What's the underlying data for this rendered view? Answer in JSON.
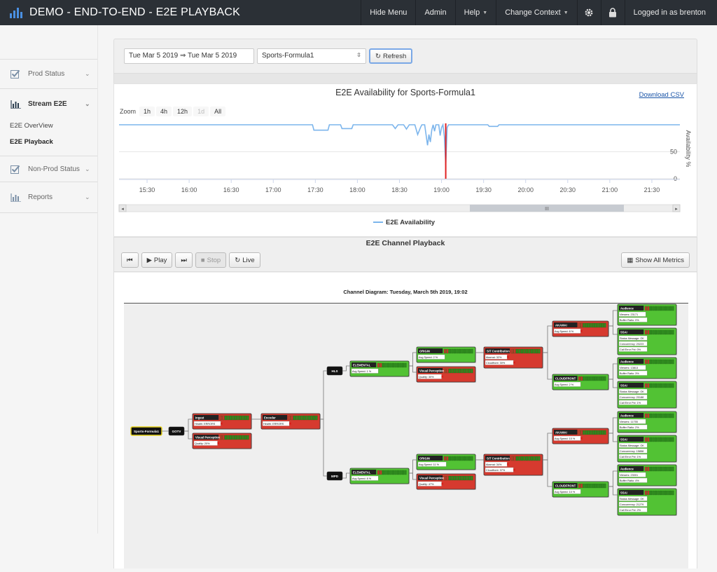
{
  "app": {
    "title": "DEMO - END-TO-END - E2E PLAYBACK"
  },
  "nav": {
    "hide_menu": "Hide Menu",
    "admin": "Admin",
    "help": "Help",
    "change_context": "Change Context",
    "user": "Logged in as brenton",
    "icons": [
      "gear-icon",
      "lock-icon"
    ]
  },
  "sidebar": {
    "sections": [
      {
        "label": "Prod Status",
        "icon": "check-icon"
      },
      {
        "label": "Stream E2E",
        "icon": "bar-chart-icon"
      },
      {
        "label": "Non-Prod Status",
        "icon": "check-icon"
      },
      {
        "label": "Reports",
        "icon": "bar-chart-icon"
      }
    ],
    "sub_items": [
      "E2E OverView",
      "E2E Playback"
    ]
  },
  "filters": {
    "date_range": "Tue Mar 5 2019  ⇒  Tue Mar 5 2019",
    "channel": "Sports-Formula1",
    "refresh": "Refresh"
  },
  "chart": {
    "title": "E2E Availability for Sports-Formula1",
    "download": "Download CSV",
    "zoom_label": "Zoom",
    "zoom_options": [
      "1h",
      "4h",
      "12h",
      "1d",
      "All"
    ],
    "legend": "E2E Availability",
    "y_axis_label": "Availability %"
  },
  "chart_data": {
    "type": "line",
    "title": "E2E Availability for Sports-Formula1",
    "xlabel": "",
    "ylabel": "Availability %",
    "x_ticks": [
      "15:30",
      "16:00",
      "16:30",
      "17:00",
      "17:30",
      "18:00",
      "18:30",
      "19:00",
      "19:30",
      "20:00",
      "20:30",
      "21:00",
      "21:30"
    ],
    "y_ticks": [
      0,
      50
    ],
    "ylim": [
      0,
      100
    ],
    "xlim": [
      "15:10",
      "21:50"
    ],
    "grid": true,
    "legend_position": "bottom",
    "marker_time": "19:03",
    "series": [
      {
        "name": "E2E Availability",
        "color": "#7cb5ec",
        "points": [
          [
            "15:10",
            100
          ],
          [
            "17:28",
            100
          ],
          [
            "17:29",
            90
          ],
          [
            "17:39",
            90
          ],
          [
            "17:40",
            100
          ],
          [
            "17:48",
            100
          ],
          [
            "17:49",
            93
          ],
          [
            "17:56",
            93
          ],
          [
            "17:57",
            100
          ],
          [
            "18:25",
            100
          ],
          [
            "18:27",
            93
          ],
          [
            "18:29",
            100
          ],
          [
            "18:33",
            100
          ],
          [
            "18:35",
            92
          ],
          [
            "18:37",
            100
          ],
          [
            "18:41",
            100
          ],
          [
            "18:43",
            82
          ],
          [
            "18:45",
            95
          ],
          [
            "18:46",
            100
          ],
          [
            "18:48",
            100
          ],
          [
            "18:50",
            62
          ],
          [
            "18:51",
            82
          ],
          [
            "18:52",
            68
          ],
          [
            "18:53",
            90
          ],
          [
            "18:54",
            100
          ],
          [
            "18:55",
            88
          ],
          [
            "18:56",
            100
          ],
          [
            "18:58",
            100
          ],
          [
            "18:59",
            80
          ],
          [
            "19:00",
            95
          ],
          [
            "19:01",
            100
          ],
          [
            "19:02",
            78
          ],
          [
            "19:03",
            25
          ],
          [
            "19:04",
            95
          ],
          [
            "19:05",
            100
          ],
          [
            "19:33",
            100
          ],
          [
            "19:34",
            97
          ],
          [
            "19:40",
            97
          ],
          [
            "19:41",
            100
          ],
          [
            "21:50",
            100
          ]
        ]
      }
    ]
  },
  "playback": {
    "title": "E2E Channel Playback",
    "play": "Play",
    "stop": "Stop",
    "live": "Live",
    "show_all": "Show All Metrics",
    "diagram_title": "Channel Diagram: Tuesday, March 5th 2019, 19:02"
  },
  "diagram": {
    "colors": {
      "ok": "#52c234",
      "error": "#d63a2f",
      "border": "#555"
    },
    "source": "Sports-Formula1",
    "gotv": "GOTV",
    "ingest": {
      "title": "Ingest",
      "metric": "Health: ERRORS"
    },
    "visual1": {
      "title": "Visual Perception",
      "metric": "Quality: 20%"
    },
    "encoder": {
      "title": "Encoder",
      "metric": "Health: ERRORS"
    },
    "hls": "HLS",
    "mpd": "MPD",
    "top": {
      "elemental": {
        "title": "ELEMENTAL",
        "metric": "Avg Speed: 1 %"
      },
      "origin": {
        "title": "ORIGIN",
        "metric": "Avg Speed: 2 %"
      },
      "visual": {
        "title": "Visual Perception",
        "metric": "Quality: 30%"
      },
      "sit": {
        "title": "SIT Contribution",
        "m1": "Akamai: 32%",
        "m2": "Cloudfront: 30%"
      },
      "akamai": {
        "title": "AKAMAI",
        "metric": "Avg Speed: 8 %"
      },
      "cloudfront": {
        "title": "CLOUDFRONT",
        "metric": "Avg Speed: 2 %"
      },
      "aud1": {
        "title": "Audience",
        "m1": "Viewers: 23171",
        "m2": "Buffer Ratio: 0%"
      },
      "ssai1": {
        "title": "SSAI",
        "m1": "Status Message: OK",
        "m2": "Concurrency: 20223",
        "m3": "Call Error Pct: 0%"
      },
      "aud2": {
        "title": "Audience",
        "m1": "Viewers: 13813",
        "m2": "Buffer Ratio: 3%"
      },
      "ssai2": {
        "title": "SSAI",
        "m1": "Status Message: OK",
        "m2": "Concurrency: 20188",
        "m3": "Call Error Pct: 1%"
      }
    },
    "bottom": {
      "elemental": {
        "title": "ELEMENTAL",
        "metric": "Avg Speed: 8 %"
      },
      "origin": {
        "title": "ORIGIN",
        "metric": "Avg Speed: 11 %"
      },
      "visual": {
        "title": "Visual Perception",
        "metric": "Quality: 47%"
      },
      "sit": {
        "title": "SIT Contribution",
        "m1": "Akamai: 34%",
        "m2": "Cloudfront: 37%"
      },
      "akamai": {
        "title": "AKAMAI",
        "metric": "Avg Speed: 10 %"
      },
      "cloudfront": {
        "title": "CLOUDFRONT",
        "metric": "Avg Speed: 10 %"
      },
      "aud1": {
        "title": "Audience",
        "m1": "Viewers: 11755",
        "m2": "Buffer Ratio: 2%"
      },
      "ssai1": {
        "title": "SSAI",
        "m1": "Status Message: OK",
        "m2": "Concurrency: 15858",
        "m3": "Call Error Pct: 1%"
      },
      "aud2": {
        "title": "Audience",
        "m1": "Viewers: 23001",
        "m2": "Buffer Ratio: 4%"
      },
      "ssai2": {
        "title": "SSAI",
        "m1": "Status Message: OK",
        "m2": "Concurrency: 21279",
        "m3": "Call Error Pct: 2%"
      }
    }
  }
}
